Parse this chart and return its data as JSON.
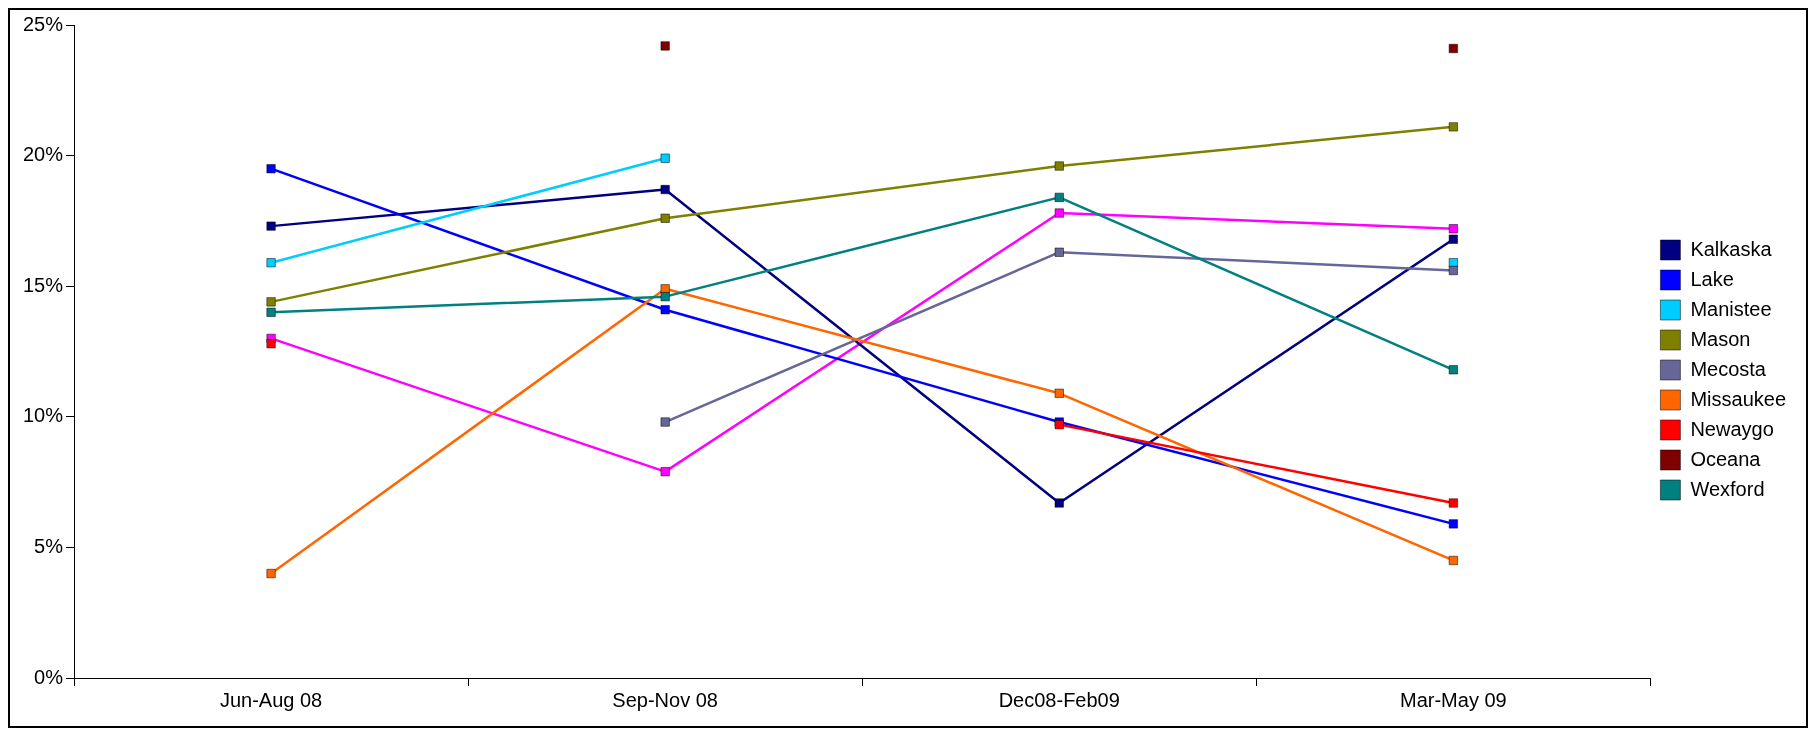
{
  "chart_data": {
    "type": "line",
    "categories": [
      "Jun-Aug 08",
      "Sep-Nov 08",
      "Dec08-Feb09",
      "Mar-May 09"
    ],
    "ylim": [
      0,
      25
    ],
    "yticks": [
      {
        "value": 0,
        "label": "0%"
      },
      {
        "value": 5,
        "label": "5%"
      },
      {
        "value": 10,
        "label": "10%"
      },
      {
        "value": 15,
        "label": "15%"
      },
      {
        "value": 20,
        "label": "20%"
      },
      {
        "value": 25,
        "label": "25%"
      }
    ],
    "grid": false,
    "legend": "right",
    "marker": "square",
    "line_style": "solid",
    "series": [
      {
        "color": "#ff00ff",
        "values": [
          13.0,
          7.9,
          17.8,
          17.2
        ]
      },
      {
        "name": "Kalkaska",
        "color": "#000080",
        "values": [
          17.3,
          18.7,
          6.7,
          16.8
        ]
      },
      {
        "name": "Lake",
        "color": "#0000ff",
        "values": [
          19.5,
          14.1,
          9.8,
          5.9
        ]
      },
      {
        "name": "Manistee",
        "color": "#00ccff",
        "values": [
          15.9,
          19.9,
          null,
          15.9
        ]
      },
      {
        "name": "Mason",
        "color": "#808000",
        "values": [
          14.4,
          17.6,
          19.6,
          21.1
        ]
      },
      {
        "name": "Mecosta",
        "color": "#666699",
        "values": [
          null,
          9.8,
          16.3,
          15.6
        ]
      },
      {
        "name": "Missaukee",
        "color": "#ff6600",
        "values": [
          4.0,
          14.9,
          10.9,
          4.5
        ]
      },
      {
        "name": "Newaygo",
        "color": "#ff0000",
        "values": [
          12.8,
          null,
          9.7,
          6.7
        ]
      },
      {
        "name": "Oceana",
        "type": "scatter",
        "color": "#800000",
        "values": [
          null,
          24.2,
          null,
          24.1
        ]
      },
      {
        "name": "Wexford",
        "color": "#008080",
        "values": [
          14.0,
          14.6,
          18.4,
          11.8
        ]
      }
    ]
  }
}
